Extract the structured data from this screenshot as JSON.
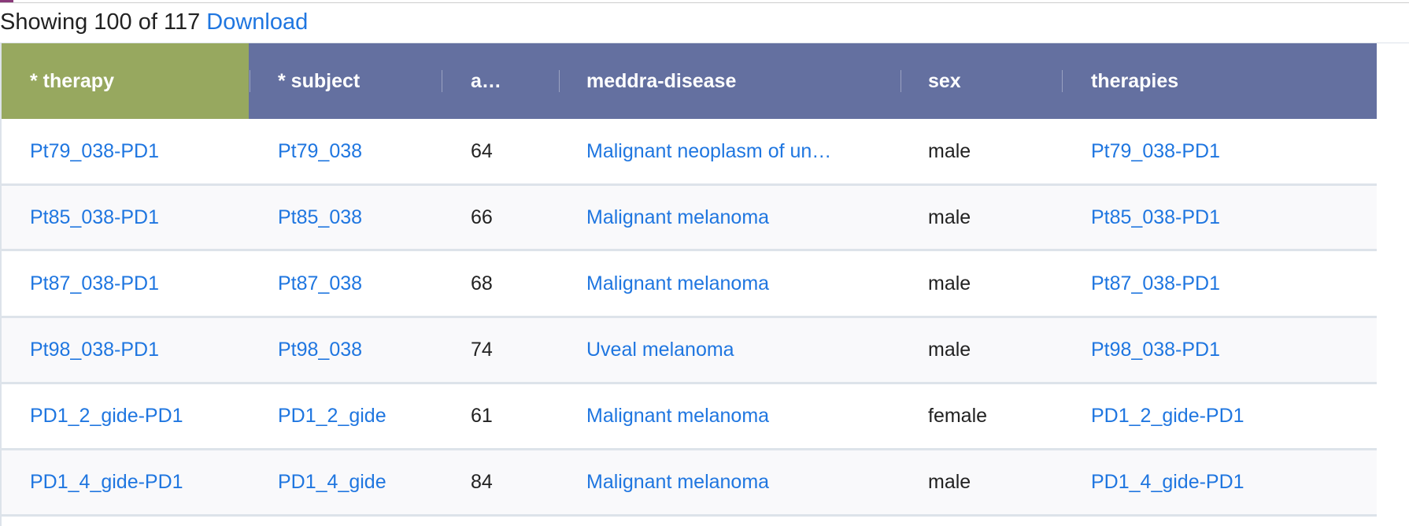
{
  "status": {
    "text": "Showing 100 of 117",
    "link": "Download"
  },
  "table": {
    "columns": [
      "* therapy",
      "* subject",
      "a…",
      "meddra-disease",
      "sex",
      "therapies"
    ],
    "rows": [
      [
        "Pt79_038-PD1",
        "Pt79_038",
        "64",
        "Malignant neoplasm of un…",
        "male",
        "Pt79_038-PD1"
      ],
      [
        "Pt85_038-PD1",
        "Pt85_038",
        "66",
        "Malignant melanoma",
        "male",
        "Pt85_038-PD1"
      ],
      [
        "Pt87_038-PD1",
        "Pt87_038",
        "68",
        "Malignant melanoma",
        "male",
        "Pt87_038-PD1"
      ],
      [
        "Pt98_038-PD1",
        "Pt98_038",
        "74",
        "Uveal melanoma",
        "male",
        "Pt98_038-PD1"
      ],
      [
        "PD1_2_gide-PD1",
        "PD1_2_gide",
        "61",
        "Malignant melanoma",
        "female",
        "PD1_2_gide-PD1"
      ],
      [
        "PD1_4_gide-PD1",
        "PD1_4_gide",
        "84",
        "Malignant melanoma",
        "male",
        "PD1_4_gide-PD1"
      ]
    ]
  }
}
